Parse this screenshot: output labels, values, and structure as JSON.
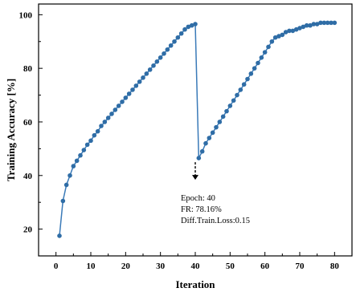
{
  "chart_data": {
    "type": "line",
    "xlabel": "Iteration",
    "ylabel": "Training Accuracy [%]",
    "xlim": [
      -5,
      85
    ],
    "ylim": [
      10,
      104
    ],
    "x_ticks": [
      0,
      10,
      20,
      30,
      40,
      50,
      60,
      70,
      80
    ],
    "y_ticks": [
      20,
      40,
      60,
      80,
      100
    ],
    "grid": false,
    "series_color": "#3a7ab8",
    "marker_color": "#2f6da6",
    "series": [
      {
        "x": [
          1,
          2,
          3,
          4,
          5,
          6,
          7,
          8,
          9,
          10,
          11,
          12,
          13,
          14,
          15,
          16,
          17,
          18,
          19,
          20,
          21,
          22,
          23,
          24,
          25,
          26,
          27,
          28,
          29,
          30,
          31,
          32,
          33,
          34,
          35,
          36,
          37,
          38,
          39,
          40,
          41,
          42,
          43,
          44,
          45,
          46,
          47,
          48,
          49,
          50,
          51,
          52,
          53,
          54,
          55,
          56,
          57,
          58,
          59,
          60,
          61,
          62,
          63,
          64,
          65,
          66,
          67,
          68,
          69,
          70,
          71,
          72,
          73,
          74,
          75,
          76,
          77,
          78,
          79,
          80
        ],
        "y": [
          17.5,
          30.5,
          36.5,
          40.0,
          43.5,
          45.5,
          47.5,
          49.5,
          51.5,
          53.0,
          55.0,
          56.5,
          58.5,
          60.0,
          61.5,
          63.0,
          64.5,
          66.0,
          67.5,
          69.0,
          70.5,
          72.0,
          73.5,
          75.0,
          76.5,
          78.0,
          79.5,
          81.0,
          82.5,
          84.0,
          85.5,
          87.0,
          88.5,
          90.0,
          91.5,
          93.0,
          94.5,
          95.5,
          96.0,
          96.5,
          46.5,
          49.0,
          52.0,
          54.0,
          56.0,
          58.0,
          60.0,
          62.0,
          64.0,
          66.0,
          68.0,
          70.0,
          72.0,
          74.0,
          76.0,
          78.0,
          80.0,
          82.0,
          84.0,
          86.0,
          88.0,
          90.0,
          91.5,
          92.0,
          92.5,
          93.5,
          94.0,
          94.0,
          94.5,
          95.0,
          95.5,
          96.0,
          96.0,
          96.5,
          96.5,
          97.0,
          97.0,
          97.0,
          97.0,
          97.0
        ]
      }
    ],
    "annotation": {
      "arrow_at": {
        "x": 40,
        "y": 46.5
      },
      "lines": [
        "Epoch: 40",
        "FR: 78.16%",
        "Diff.Train.Loss:0.15"
      ]
    }
  }
}
